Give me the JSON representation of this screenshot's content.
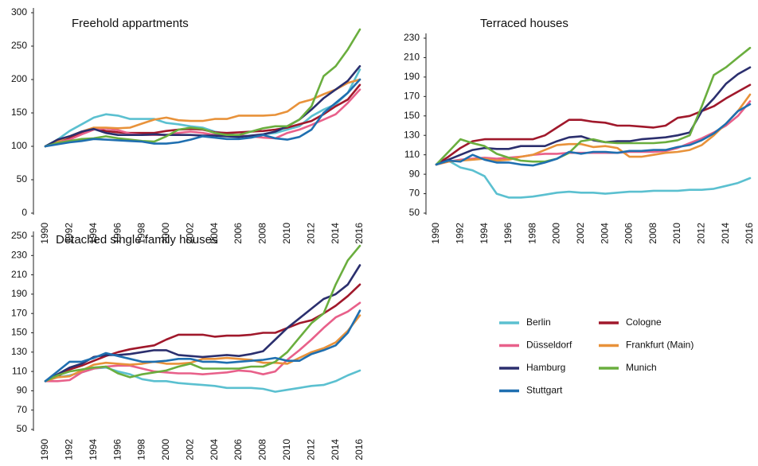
{
  "chart_data": [
    {
      "type": "line",
      "title": "Freehold appartments",
      "x": [
        1990,
        1991,
        1992,
        1993,
        1994,
        1995,
        1996,
        1997,
        1998,
        1999,
        2000,
        2001,
        2002,
        2003,
        2004,
        2005,
        2006,
        2007,
        2008,
        2009,
        2010,
        2011,
        2012,
        2013,
        2014,
        2015,
        2016
      ],
      "xlim": [
        1990,
        2016
      ],
      "xticks": [
        1990,
        1992,
        1994,
        1996,
        1998,
        2000,
        2002,
        2004,
        2006,
        2008,
        2010,
        2012,
        2014,
        2016
      ],
      "ylim": [
        0,
        300
      ],
      "yticks": [
        0,
        50,
        100,
        150,
        200,
        250,
        300
      ],
      "series": [
        {
          "name": "Berlin",
          "color": "#5bc0d0",
          "values": [
            100,
            110,
            123,
            133,
            143,
            148,
            146,
            141,
            141,
            141,
            135,
            133,
            130,
            128,
            122,
            119,
            116,
            115,
            118,
            120,
            125,
            130,
            145,
            155,
            163,
            180,
            215
          ]
        },
        {
          "name": "Cologne",
          "color": "#a0182b",
          "values": [
            100,
            108,
            113,
            120,
            126,
            123,
            121,
            120,
            120,
            120,
            123,
            125,
            126,
            125,
            121,
            120,
            121,
            122,
            123,
            125,
            128,
            133,
            138,
            148,
            160,
            170,
            192
          ]
        },
        {
          "name": "Düsseldorf",
          "color": "#e8608a",
          "values": [
            100,
            106,
            110,
            118,
            125,
            127,
            124,
            119,
            117,
            117,
            117,
            120,
            122,
            120,
            117,
            117,
            116,
            115,
            113,
            112,
            120,
            125,
            132,
            140,
            148,
            165,
            185
          ]
        },
        {
          "name": "Frankfurt (Main)",
          "color": "#e8923a",
          "values": [
            100,
            108,
            115,
            122,
            128,
            128,
            127,
            128,
            134,
            140,
            143,
            139,
            138,
            138,
            141,
            141,
            146,
            146,
            146,
            147,
            152,
            165,
            170,
            178,
            185,
            195,
            200
          ]
        },
        {
          "name": "Hamburg",
          "color": "#2b2f6e",
          "values": [
            100,
            110,
            115,
            122,
            126,
            120,
            117,
            117,
            117,
            118,
            117,
            117,
            117,
            116,
            116,
            115,
            114,
            116,
            118,
            122,
            130,
            140,
            155,
            172,
            185,
            198,
            220
          ]
        },
        {
          "name": "Munich",
          "color": "#6aae3e",
          "values": [
            100,
            105,
            108,
            111,
            112,
            115,
            112,
            110,
            108,
            107,
            115,
            125,
            128,
            126,
            120,
            117,
            117,
            122,
            127,
            130,
            130,
            140,
            160,
            205,
            220,
            245,
            275
          ]
        },
        {
          "name": "Stuttgart",
          "color": "#1f6fb0",
          "values": [
            100,
            103,
            106,
            108,
            111,
            110,
            109,
            108,
            107,
            104,
            104,
            106,
            110,
            115,
            113,
            111,
            111,
            113,
            117,
            112,
            110,
            114,
            125,
            150,
            165,
            180,
            200
          ]
        }
      ]
    },
    {
      "type": "line",
      "title": "Terraced houses",
      "x": [
        1990,
        1991,
        1992,
        1993,
        1994,
        1995,
        1996,
        1997,
        1998,
        1999,
        2000,
        2001,
        2002,
        2003,
        2004,
        2005,
        2006,
        2007,
        2008,
        2009,
        2010,
        2011,
        2012,
        2013,
        2014,
        2015,
        2016
      ],
      "xlim": [
        1990,
        2016
      ],
      "xticks": [
        1990,
        1992,
        1994,
        1996,
        1998,
        2000,
        2002,
        2004,
        2006,
        2008,
        2010,
        2012,
        2014,
        2016
      ],
      "ylim": [
        50,
        230
      ],
      "yticks": [
        50,
        70,
        90,
        110,
        130,
        150,
        170,
        190,
        210,
        230
      ],
      "series": [
        {
          "color": "#5bc0d0",
          "values": [
            100,
            104,
            97,
            94,
            88,
            70,
            66,
            66,
            67,
            69,
            71,
            72,
            71,
            71,
            70,
            71,
            72,
            72,
            73,
            73,
            73,
            74,
            74,
            75,
            78,
            81,
            86
          ]
        },
        {
          "color": "#a0182b",
          "values": [
            100,
            108,
            117,
            124,
            126,
            126,
            126,
            126,
            126,
            130,
            138,
            146,
            146,
            144,
            143,
            140,
            140,
            139,
            138,
            140,
            148,
            150,
            155,
            160,
            168,
            175,
            182
          ]
        },
        {
          "color": "#e8608a",
          "values": [
            100,
            103,
            105,
            106,
            107,
            106,
            107,
            108,
            110,
            111,
            111,
            112,
            112,
            112,
            112,
            112,
            113,
            113,
            113,
            114,
            117,
            122,
            127,
            133,
            140,
            150,
            165
          ]
        },
        {
          "color": "#e8923a",
          "values": [
            100,
            103,
            104,
            105,
            106,
            104,
            105,
            108,
            110,
            115,
            120,
            121,
            121,
            118,
            119,
            117,
            108,
            108,
            110,
            112,
            113,
            115,
            120,
            130,
            142,
            155,
            172
          ]
        },
        {
          "color": "#2b2f6e",
          "values": [
            100,
            105,
            110,
            115,
            117,
            116,
            116,
            119,
            119,
            119,
            124,
            128,
            129,
            125,
            123,
            124,
            124,
            126,
            127,
            128,
            130,
            133,
            155,
            168,
            183,
            193,
            200
          ]
        },
        {
          "color": "#6aae3e",
          "values": [
            100,
            113,
            126,
            122,
            119,
            111,
            107,
            104,
            103,
            103,
            106,
            112,
            124,
            126,
            123,
            122,
            122,
            122,
            122,
            123,
            125,
            130,
            160,
            192,
            200,
            210,
            220
          ]
        },
        {
          "color": "#1f6fb0",
          "values": [
            100,
            104,
            103,
            110,
            105,
            102,
            102,
            100,
            99,
            102,
            106,
            113,
            111,
            113,
            113,
            112,
            114,
            114,
            115,
            115,
            118,
            120,
            125,
            132,
            142,
            155,
            162
          ]
        }
      ]
    },
    {
      "type": "line",
      "title": "Detached single family houses",
      "x": [
        1990,
        1991,
        1992,
        1993,
        1994,
        1995,
        1996,
        1997,
        1998,
        1999,
        2000,
        2001,
        2002,
        2003,
        2004,
        2005,
        2006,
        2007,
        2008,
        2009,
        2010,
        2011,
        2012,
        2013,
        2014,
        2015,
        2016
      ],
      "xlim": [
        1990,
        2016
      ],
      "xticks": [
        1990,
        1992,
        1994,
        1996,
        1998,
        2000,
        2002,
        2004,
        2006,
        2008,
        2010,
        2012,
        2014,
        2016
      ],
      "ylim": [
        50,
        250
      ],
      "yticks": [
        50,
        70,
        90,
        110,
        130,
        150,
        170,
        190,
        210,
        230,
        250
      ],
      "series": [
        {
          "color": "#5bc0d0",
          "values": [
            100,
            104,
            106,
            109,
            113,
            114,
            110,
            107,
            102,
            100,
            100,
            98,
            97,
            96,
            95,
            93,
            93,
            93,
            92,
            89,
            91,
            93,
            95,
            96,
            100,
            106,
            111
          ]
        },
        {
          "color": "#a0182b",
          "values": [
            100,
            105,
            112,
            116,
            121,
            126,
            130,
            133,
            135,
            137,
            143,
            148,
            148,
            148,
            146,
            147,
            147,
            148,
            150,
            150,
            155,
            160,
            163,
            170,
            178,
            188,
            200
          ]
        },
        {
          "color": "#e8608a",
          "values": [
            100,
            100,
            101,
            109,
            113,
            115,
            116,
            116,
            113,
            110,
            109,
            108,
            108,
            107,
            108,
            109,
            111,
            110,
            107,
            110,
            122,
            132,
            143,
            155,
            166,
            172,
            181
          ]
        },
        {
          "color": "#e8923a",
          "values": [
            100,
            104,
            105,
            111,
            117,
            119,
            118,
            117,
            118,
            120,
            118,
            118,
            119,
            123,
            123,
            124,
            123,
            122,
            119,
            119,
            118,
            124,
            130,
            134,
            140,
            152,
            168
          ]
        },
        {
          "color": "#2b2f6e",
          "values": [
            100,
            107,
            114,
            118,
            125,
            127,
            127,
            128,
            130,
            132,
            132,
            127,
            126,
            125,
            126,
            127,
            126,
            128,
            131,
            143,
            155,
            165,
            175,
            185,
            190,
            200,
            220
          ]
        },
        {
          "color": "#6aae3e",
          "values": [
            100,
            106,
            110,
            112,
            114,
            115,
            108,
            104,
            107,
            109,
            111,
            115,
            118,
            113,
            113,
            113,
            113,
            115,
            115,
            120,
            130,
            145,
            160,
            170,
            200,
            225,
            240
          ]
        },
        {
          "color": "#1f6fb0",
          "values": [
            100,
            110,
            120,
            120,
            124,
            129,
            126,
            123,
            120,
            120,
            121,
            123,
            123,
            120,
            120,
            119,
            120,
            121,
            122,
            124,
            121,
            121,
            128,
            132,
            137,
            150,
            173
          ]
        }
      ]
    }
  ]
}
